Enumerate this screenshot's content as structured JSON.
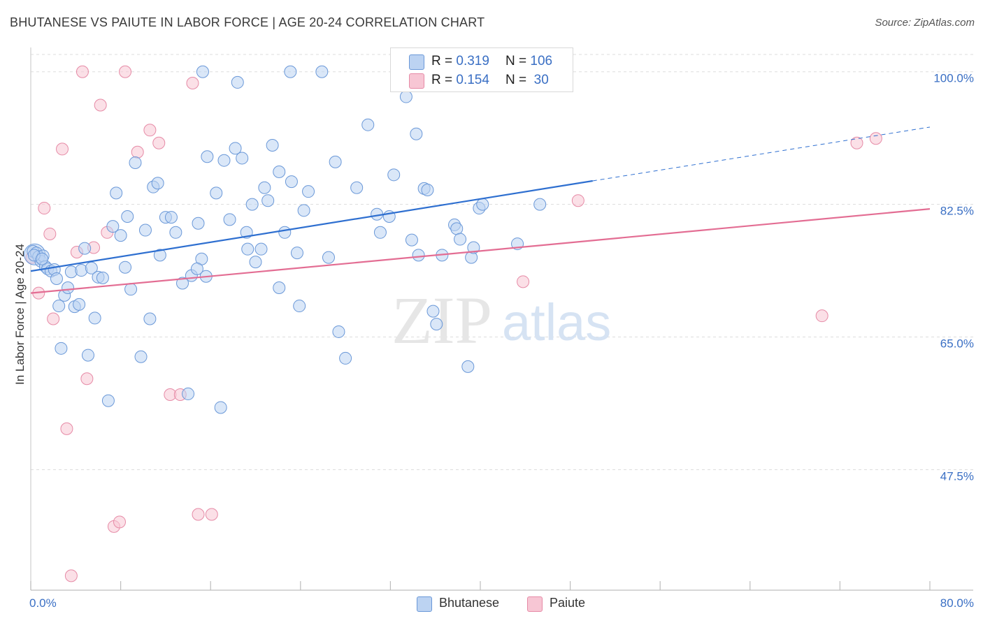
{
  "title": "BHUTANESE VS PAIUTE IN LABOR FORCE | AGE 20-24 CORRELATION CHART",
  "source": "Source: ZipAtlas.com",
  "watermark": {
    "zip": "ZIP",
    "atlas": "atlas"
  },
  "stats": [
    {
      "r_label": "R =",
      "r_value": "0.319",
      "n_label": "N =",
      "n_value": "106"
    },
    {
      "r_label": "R =",
      "r_value": "0.154",
      "n_label": "N =",
      "n_value": "30"
    }
  ],
  "colors": {
    "bhutanese_fill": "#bcd3f2",
    "bhutanese_stroke": "#6a98d8",
    "bhutanese_line": "#2e6fd0",
    "paiute_fill": "#f7c6d4",
    "paiute_stroke": "#e68aa6",
    "paiute_line": "#e36d93",
    "axis_text": "#3a6fc4",
    "grid": "#dddddd"
  },
  "chart_data": {
    "type": "scatter",
    "title": "BHUTANESE VS PAIUTE IN LABOR FORCE | AGE 20-24 CORRELATION CHART",
    "xlabel": "",
    "ylabel": "In Labor Force | Age 20-24",
    "xlim": [
      0,
      80
    ],
    "ylim": [
      31.6,
      103.2
    ],
    "x_tick_labels": [
      "0.0%",
      "80.0%"
    ],
    "y_ticks": [
      100.0,
      82.5,
      65.0,
      47.5
    ],
    "y_tick_labels": [
      "100.0%",
      "82.5%",
      "65.0%",
      "47.5%"
    ],
    "grid": true,
    "legend": [
      "Bhutanese",
      "Paiute"
    ],
    "series": [
      {
        "name": "Bhutanese",
        "r": 0.319,
        "n": 106,
        "trend": {
          "x": [
            0,
            50
          ],
          "y": [
            73.7,
            85.6
          ]
        },
        "trend_extension": {
          "x": [
            50,
            80
          ],
          "y": [
            85.6,
            92.7
          ]
        },
        "points": [
          [
            0.2,
            76.3
          ],
          [
            0.5,
            76.1
          ],
          [
            0.7,
            75.6
          ],
          [
            0.9,
            75.0
          ],
          [
            1.1,
            75.7
          ],
          [
            1.3,
            74.3
          ],
          [
            1.5,
            74.0
          ],
          [
            1.8,
            73.7
          ],
          [
            2.1,
            73.9
          ],
          [
            2.3,
            72.7
          ],
          [
            2.5,
            69.1
          ],
          [
            2.7,
            63.5
          ],
          [
            3.0,
            70.5
          ],
          [
            3.3,
            71.5
          ],
          [
            3.6,
            73.6
          ],
          [
            3.9,
            69.0
          ],
          [
            4.3,
            69.3
          ],
          [
            4.5,
            73.8
          ],
          [
            4.8,
            76.7
          ],
          [
            5.1,
            62.6
          ],
          [
            5.4,
            74.1
          ],
          [
            5.7,
            67.5
          ],
          [
            6.0,
            72.9
          ],
          [
            6.4,
            72.8
          ],
          [
            6.9,
            56.6
          ],
          [
            7.3,
            79.6
          ],
          [
            7.6,
            84.0
          ],
          [
            8.0,
            78.4
          ],
          [
            8.4,
            74.2
          ],
          [
            8.6,
            80.9
          ],
          [
            8.9,
            71.3
          ],
          [
            9.3,
            88.0
          ],
          [
            9.8,
            62.4
          ],
          [
            10.2,
            79.1
          ],
          [
            10.6,
            67.4
          ],
          [
            10.9,
            84.8
          ],
          [
            11.3,
            85.3
          ],
          [
            11.5,
            75.8
          ],
          [
            12.0,
            80.8
          ],
          [
            12.5,
            80.8
          ],
          [
            12.9,
            78.8
          ],
          [
            13.5,
            72.1
          ],
          [
            14.0,
            57.5
          ],
          [
            14.3,
            73.1
          ],
          [
            14.9,
            80.0
          ],
          [
            15.2,
            75.3
          ],
          [
            15.6,
            73.0
          ],
          [
            15.7,
            88.8
          ],
          [
            16.5,
            84.0
          ],
          [
            16.9,
            55.7
          ],
          [
            17.2,
            88.3
          ],
          [
            17.7,
            80.5
          ],
          [
            18.2,
            89.9
          ],
          [
            18.4,
            98.6
          ],
          [
            18.8,
            88.6
          ],
          [
            19.2,
            78.8
          ],
          [
            19.3,
            76.6
          ],
          [
            19.7,
            82.5
          ],
          [
            20.0,
            74.9
          ],
          [
            20.5,
            76.6
          ],
          [
            20.8,
            84.7
          ],
          [
            21.1,
            83.0
          ],
          [
            21.5,
            90.3
          ],
          [
            22.1,
            86.8
          ],
          [
            22.1,
            71.5
          ],
          [
            22.6,
            78.8
          ],
          [
            23.2,
            85.5
          ],
          [
            23.7,
            76.1
          ],
          [
            23.9,
            69.1
          ],
          [
            24.3,
            81.7
          ],
          [
            24.7,
            84.2
          ],
          [
            25.9,
            100.0
          ],
          [
            26.5,
            75.5
          ],
          [
            27.1,
            88.1
          ],
          [
            27.4,
            65.7
          ],
          [
            28.0,
            62.2
          ],
          [
            29.0,
            84.7
          ],
          [
            30.0,
            93.0
          ],
          [
            30.8,
            81.2
          ],
          [
            31.1,
            78.8
          ],
          [
            31.9,
            80.9
          ],
          [
            32.3,
            86.4
          ],
          [
            33.4,
            96.7
          ],
          [
            33.9,
            77.8
          ],
          [
            34.3,
            91.8
          ],
          [
            34.5,
            75.8
          ],
          [
            35.0,
            84.6
          ],
          [
            35.3,
            84.4
          ],
          [
            35.8,
            68.4
          ],
          [
            36.1,
            66.7
          ],
          [
            36.6,
            75.8
          ],
          [
            37.7,
            79.8
          ],
          [
            37.9,
            79.3
          ],
          [
            38.2,
            77.9
          ],
          [
            38.9,
            61.1
          ],
          [
            39.2,
            75.5
          ],
          [
            39.4,
            76.8
          ],
          [
            39.9,
            82.0
          ],
          [
            40.2,
            82.5
          ],
          [
            43.3,
            77.3
          ],
          [
            45.3,
            82.5
          ],
          [
            0.3,
            75.8
          ],
          [
            1.0,
            75.3
          ],
          [
            15.3,
            100.0
          ],
          [
            23.1,
            100.0
          ],
          [
            14.8,
            74.0
          ]
        ]
      },
      {
        "name": "Paiute",
        "r": 0.154,
        "n": 30,
        "trend": {
          "x": [
            0,
            80
          ],
          "y": [
            70.8,
            81.9
          ]
        },
        "points": [
          [
            0.1,
            75.5
          ],
          [
            0.7,
            70.8
          ],
          [
            1.2,
            82.0
          ],
          [
            1.7,
            78.6
          ],
          [
            2.0,
            67.4
          ],
          [
            2.8,
            89.8
          ],
          [
            3.2,
            52.9
          ],
          [
            3.6,
            33.5
          ],
          [
            4.1,
            76.2
          ],
          [
            4.6,
            100.0
          ],
          [
            5.0,
            59.5
          ],
          [
            5.6,
            76.8
          ],
          [
            6.2,
            95.6
          ],
          [
            6.8,
            78.8
          ],
          [
            7.4,
            40.0
          ],
          [
            7.9,
            40.6
          ],
          [
            8.4,
            100.0
          ],
          [
            9.5,
            89.4
          ],
          [
            10.6,
            92.3
          ],
          [
            11.4,
            90.6
          ],
          [
            12.4,
            57.4
          ],
          [
            13.3,
            57.4
          ],
          [
            14.4,
            98.5
          ],
          [
            14.9,
            41.6
          ],
          [
            16.1,
            41.6
          ],
          [
            43.8,
            72.3
          ],
          [
            48.7,
            83.0
          ],
          [
            70.4,
            67.8
          ],
          [
            73.5,
            90.6
          ],
          [
            75.2,
            91.2
          ]
        ]
      }
    ]
  }
}
